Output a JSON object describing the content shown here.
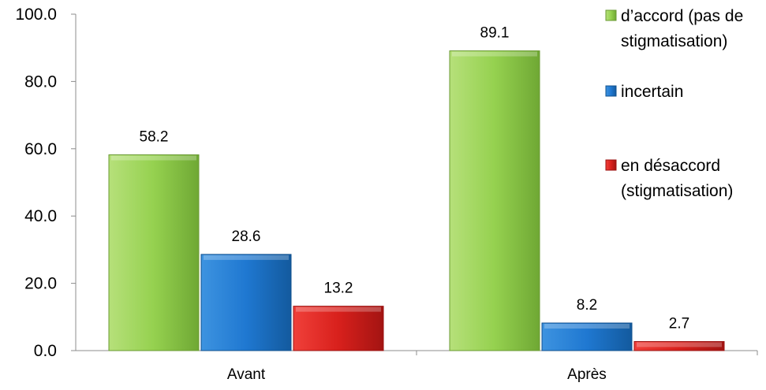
{
  "chart_data": {
    "type": "bar",
    "title": "",
    "xlabel": "",
    "ylabel": "",
    "categories": [
      "Avant",
      "Après"
    ],
    "ylim": [
      0,
      100
    ],
    "yticks": [
      "0.0",
      "20.0",
      "40.0",
      "60.0",
      "80.0",
      "100.0"
    ],
    "grid": false,
    "legend_position": "right",
    "series": [
      {
        "name": "d’accord (pas de stigmatisation)",
        "legend_lines": [
          "d’accord (pas de",
          "stigmatisation)"
        ],
        "color": "#8fd14f",
        "values": [
          58.2,
          89.1
        ],
        "labels": [
          "58.2",
          "89.1"
        ]
      },
      {
        "name": "incertain",
        "legend_lines": [
          "incertain"
        ],
        "color": "#1f78d1",
        "values": [
          28.6,
          8.2
        ],
        "labels": [
          "28.6",
          "8.2"
        ]
      },
      {
        "name": "en désaccord (stigmatisation)",
        "legend_lines": [
          "en désaccord",
          "(stigmatisation)"
        ],
        "color": "#e31a1c",
        "values": [
          13.2,
          2.7
        ],
        "labels": [
          "13.2",
          "2.7"
        ]
      }
    ]
  }
}
